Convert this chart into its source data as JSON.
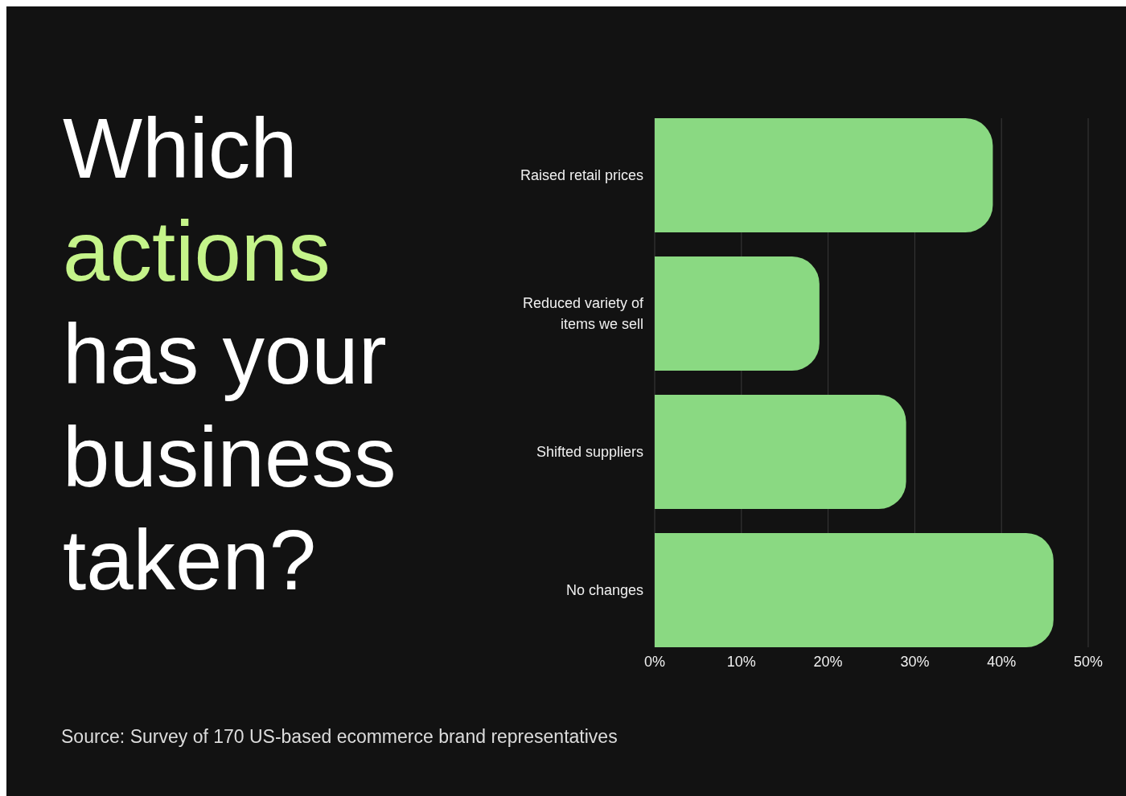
{
  "chart_data": {
    "type": "bar",
    "orientation": "horizontal",
    "title": "Which actions has your business taken?",
    "categories": [
      "Raised retail prices",
      "Reduced variety of items we sell",
      "Shifted suppliers",
      "No changes"
    ],
    "values": [
      39,
      19,
      29,
      46
    ],
    "color": "#8ad982",
    "xlim": [
      0,
      50
    ],
    "xticks": [
      {
        "value": 0,
        "label": "0%"
      },
      {
        "value": 10,
        "label": "10%"
      },
      {
        "value": 20,
        "label": "20%"
      },
      {
        "value": 30,
        "label": "30%"
      },
      {
        "value": 40,
        "label": "40%"
      },
      {
        "value": 50,
        "label": "50%"
      }
    ],
    "grid": "x",
    "annotations": [
      "Source: Survey of 170 US-based ecommerce brand representatives"
    ]
  }
}
